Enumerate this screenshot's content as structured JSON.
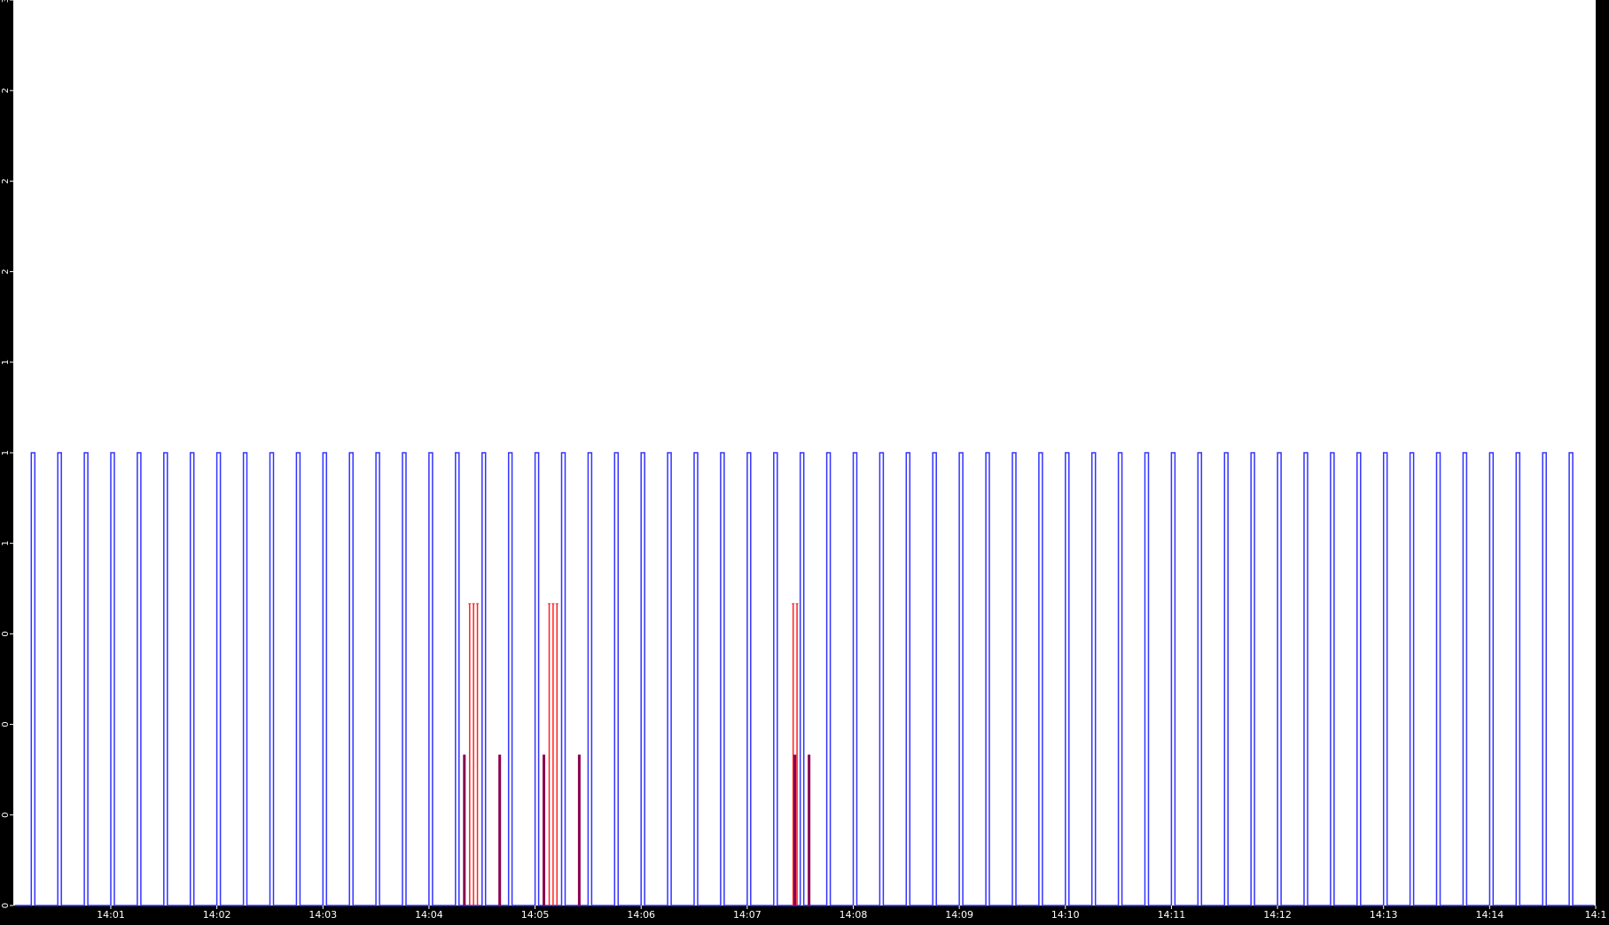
{
  "chart_data": {
    "type": "line",
    "title": "",
    "xlabel": "",
    "ylabel": "",
    "background": "#000000",
    "plot_background": "#ffffff",
    "grid": false,
    "x_tick_labels": [
      "14:01",
      "14:02",
      "14:03",
      "14:04",
      "14:05",
      "14:06",
      "14:07",
      "14:08",
      "14:09",
      "14:10",
      "14:11",
      "14:12",
      "14:13",
      "14:14",
      "14:1"
    ],
    "y_tick_labels": [
      "0",
      "0",
      "0",
      "0",
      "1",
      "1",
      "1",
      "2",
      "2",
      "2",
      "3"
    ],
    "ylim": [
      0,
      3
    ],
    "series": [
      {
        "color": "#3333ff",
        "style": "periodic square pulse train",
        "pulse_high": 1.5,
        "pulse_low": 0,
        "pulses_per_minute": 4,
        "pulse_width_s": 2
      },
      {
        "color": "#ff2222",
        "style": "pulses",
        "bursts": [
          {
            "time": "14:04:23",
            "values": [
              1.0,
              1.0,
              1.0
            ]
          },
          {
            "time": "14:05:08",
            "values": [
              1.0,
              1.0,
              1.0
            ]
          },
          {
            "time": "14:07:26",
            "values": [
              1.0,
              1.0
            ]
          }
        ]
      },
      {
        "color": "#8b0050",
        "style": "pulses",
        "times": [
          "14:04:20",
          "14:04:40",
          "14:05:05",
          "14:05:25",
          "14:07:27",
          "14:07:35"
        ],
        "value": 0.5
      }
    ]
  }
}
